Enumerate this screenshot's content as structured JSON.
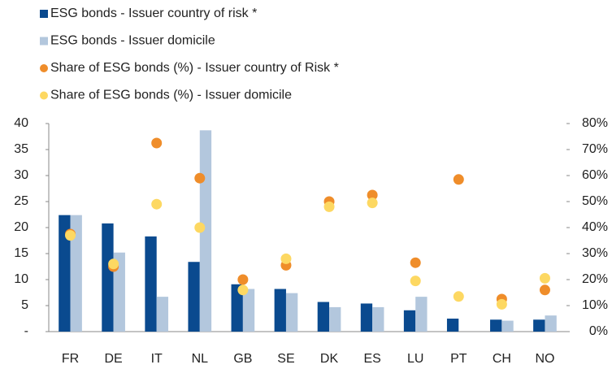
{
  "chart_data": {
    "type": "bar",
    "categories": [
      "FR",
      "DE",
      "IT",
      "NL",
      "GB",
      "SE",
      "DK",
      "ES",
      "LU",
      "PT",
      "CH",
      "NO"
    ],
    "series": [
      {
        "name": "ESG bonds - Issuer country of risk *",
        "type": "bar",
        "color": "#0a4a8f",
        "values": [
          22.4,
          20.8,
          18.3,
          13.4,
          9.1,
          8.2,
          5.7,
          5.4,
          4.1,
          2.5,
          2.3,
          2.3
        ]
      },
      {
        "name": "ESG bonds - Issuer domicile",
        "type": "bar",
        "color": "#b3c7dd",
        "values": [
          22.4,
          15.2,
          6.7,
          38.7,
          8.2,
          7.4,
          4.7,
          4.7,
          6.7,
          null,
          2.1,
          3.1
        ]
      },
      {
        "name": "Share of ESG bonds (%) - Issuer country of Risk *",
        "type": "scatter",
        "axis": "y2",
        "color": "#ef8d2a",
        "values": [
          37.5,
          25,
          72.5,
          59,
          20,
          25.5,
          50,
          52.5,
          26.5,
          58.5,
          12.5,
          16
        ]
      },
      {
        "name": "Share of ESG bonds (%) - Issuer domicile",
        "type": "scatter",
        "axis": "y2",
        "color": "#fdd862",
        "values": [
          37,
          26,
          49,
          40,
          16,
          28,
          48,
          49.5,
          19.5,
          13.5,
          10.5,
          20.5
        ]
      }
    ],
    "ylim": [
      0,
      40
    ],
    "yticks": [
      {
        "value": 0,
        "label": "-"
      },
      5,
      10,
      15,
      20,
      25,
      30,
      35,
      40
    ],
    "y2lim": [
      0,
      80
    ],
    "y2ticks": [
      {
        "value": 0,
        "label": "0%"
      },
      {
        "value": 10,
        "label": "10%"
      },
      {
        "value": 20,
        "label": "20%"
      },
      {
        "value": 30,
        "label": "30%"
      },
      {
        "value": 40,
        "label": "40%"
      },
      {
        "value": 50,
        "label": "50%"
      },
      {
        "value": 60,
        "label": "60%"
      },
      {
        "value": 70,
        "label": "70%"
      },
      {
        "value": 80,
        "label": "80%"
      }
    ]
  }
}
